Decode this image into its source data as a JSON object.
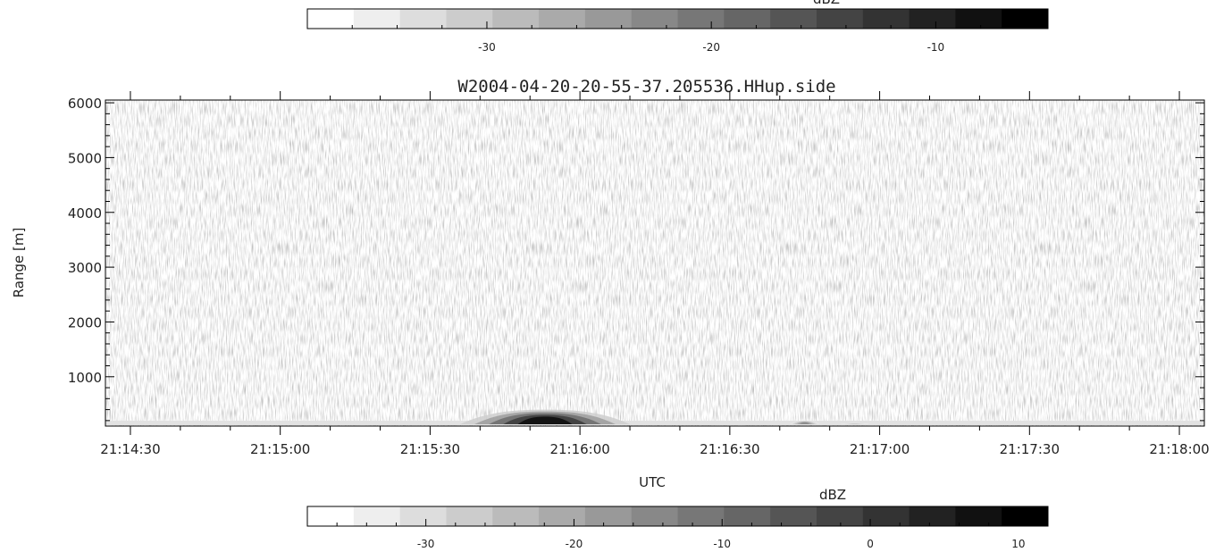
{
  "chart_data": {
    "type": "heatmap",
    "title": "W2004-04-20-20-55-37.205536.HHup.side",
    "xlabel": "UTC",
    "ylabel": "Range [m]",
    "x_ticks": [
      "21:14:30",
      "21:15:00",
      "21:15:30",
      "21:16:00",
      "21:16:30",
      "21:17:00",
      "21:17:30",
      "21:18:00"
    ],
    "y_ticks": [
      1000,
      2000,
      3000,
      4000,
      5000,
      6000
    ],
    "x_range": [
      "21:14:25",
      "21:18:05"
    ],
    "y_range": [
      100,
      6050
    ],
    "colormap": "grayscale (white = low, black = high)",
    "background_level_dbz": -38,
    "features": [
      {
        "x_start": "21:15:36",
        "x_end": "21:16:10",
        "range_top_m": 400,
        "peak_dbz": 10
      },
      {
        "x_start": "21:16:42",
        "x_end": "21:16:48",
        "range_top_m": 200,
        "peak_dbz": -15
      },
      {
        "x_start": "21:16:52",
        "x_end": "21:16:58",
        "range_top_m": 150,
        "peak_dbz": -25
      }
    ],
    "colorbars": [
      {
        "label": "dBZ",
        "range": [
          -38,
          -5
        ],
        "tick_labels": [
          "-30",
          "-20",
          "-10"
        ],
        "tick_values": [
          -30,
          -20,
          -10
        ],
        "levels": 16
      },
      {
        "label": "dBZ",
        "range": [
          -38,
          12
        ],
        "tick_labels": [
          "-30",
          "-20",
          "-10",
          "0",
          "10"
        ],
        "tick_values": [
          -30,
          -20,
          -10,
          0,
          10
        ],
        "levels": 16
      }
    ]
  }
}
